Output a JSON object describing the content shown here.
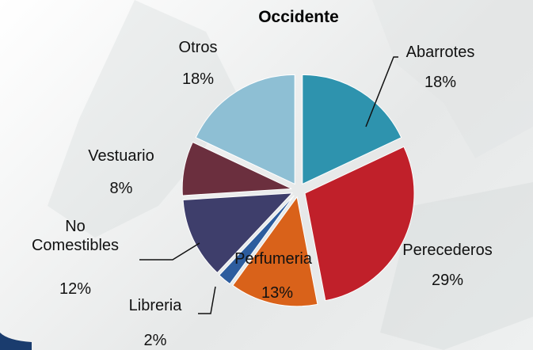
{
  "chart_data": {
    "type": "pie",
    "title": "Occidente",
    "categories": [
      "Abarrotes",
      "Perecederos",
      "Perfumeria",
      "Libreria",
      "No Comestibles",
      "Vestuario",
      "Otros"
    ],
    "values": [
      18,
      29,
      13,
      2,
      12,
      8,
      18
    ],
    "value_labels": [
      "18%",
      "29%",
      "13%",
      "2%",
      "12%",
      "8%",
      "18%"
    ],
    "colors": [
      "#2e93ae",
      "#c0202a",
      "#d9621a",
      "#2d5d9e",
      "#3e3e6b",
      "#6b2f3e",
      "#8ebfd4"
    ]
  }
}
